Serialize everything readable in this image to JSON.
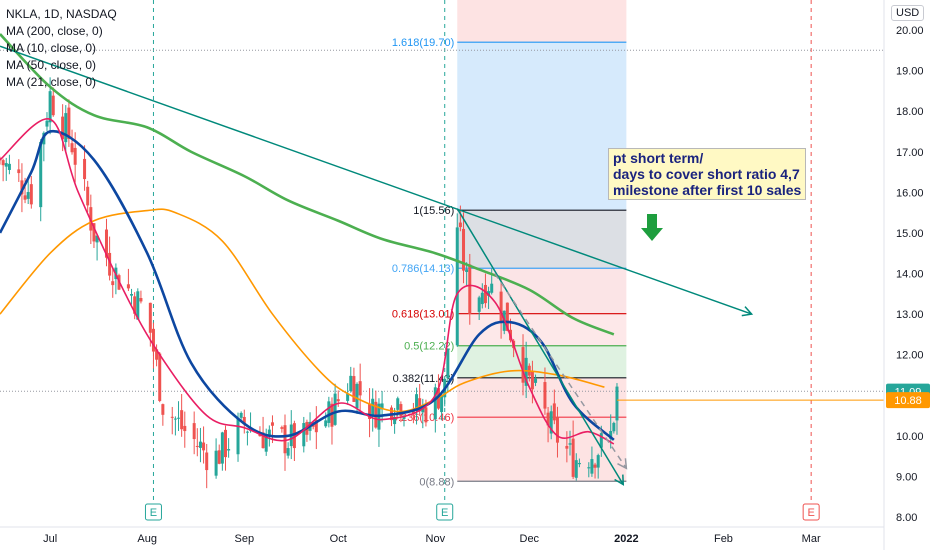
{
  "legend": {
    "title": "NKLA, 1D, NASDAQ",
    "ma200": "MA (200, close, 0)",
    "ma10": "MA (10, close, 0)",
    "ma50": "MA (50, close, 0)",
    "ma21": "MA (21, close, 0)"
  },
  "currency_badge": "USD",
  "annotation": {
    "line1": "pt short term/",
    "line2": "days to cover short ratio 4,7",
    "line3": "milestone after first 10 sales"
  },
  "event_marker": "E",
  "colors": {
    "up": "#26a69a",
    "down": "#ef5350",
    "ma200": "#4caf50",
    "ma10": "#e91e63",
    "ma50": "#ff9800",
    "ma21": "#0d47a1",
    "trend": "#00897b",
    "arrow": "#1e9e3e",
    "annotation_text": "#1a237e"
  },
  "chart_data": {
    "type": "candlestick",
    "title": "NKLA, 1D, NASDAQ",
    "x_axis": {
      "tick_labels": [
        "Jul",
        "Aug",
        "Sep",
        "Oct",
        "Nov",
        "Dec",
        "2022",
        "Feb",
        "Mar"
      ],
      "range": [
        "2021-06-15",
        "2022-03-15"
      ]
    },
    "y_axis": {
      "tick_labels": [
        "8.00",
        "9.00",
        "10.00",
        "11.00",
        "12.00",
        "13.00",
        "14.00",
        "15.00",
        "16.00",
        "17.00",
        "18.00",
        "19.00",
        "20.00"
      ],
      "range": [
        7.7,
        20.4
      ],
      "currency": "USD"
    },
    "price_labels": [
      {
        "value": 11.09,
        "label": "11.09",
        "color": "#26a69a"
      },
      {
        "value": 10.88,
        "label": "10.88",
        "color": "#ff9800"
      }
    ],
    "series": [
      {
        "name": "MA (200, close, 0)",
        "type": "ma",
        "points": [
          [
            "2021-06-15",
            19.9
          ],
          [
            "2021-07-01",
            18.6
          ],
          [
            "2021-07-15",
            17.9
          ],
          [
            "2021-08-01",
            17.6
          ],
          [
            "2021-08-15",
            17.0
          ],
          [
            "2021-09-01",
            16.4
          ],
          [
            "2021-09-15",
            15.8
          ],
          [
            "2021-10-01",
            15.3
          ],
          [
            "2021-10-15",
            14.85
          ],
          [
            "2021-11-01",
            14.5
          ],
          [
            "2021-11-15",
            14.1
          ],
          [
            "2021-12-01",
            13.6
          ],
          [
            "2021-12-15",
            12.9
          ],
          [
            "2021-12-28",
            12.5
          ]
        ]
      },
      {
        "name": "MA (50, close, 0)",
        "type": "ma",
        "points": [
          [
            "2021-06-15",
            13.0
          ],
          [
            "2021-07-01",
            14.5
          ],
          [
            "2021-07-15",
            15.3
          ],
          [
            "2021-08-01",
            15.55
          ],
          [
            "2021-08-10",
            15.5
          ],
          [
            "2021-08-25",
            14.8
          ],
          [
            "2021-09-10",
            13.0
          ],
          [
            "2021-09-25",
            11.6
          ],
          [
            "2021-10-05",
            11.0
          ],
          [
            "2021-10-20",
            10.6
          ],
          [
            "2021-11-01",
            10.9
          ],
          [
            "2021-11-10",
            11.3
          ],
          [
            "2021-11-25",
            11.6
          ],
          [
            "2021-12-10",
            11.5
          ],
          [
            "2021-12-25",
            11.2
          ]
        ]
      },
      {
        "name": "MA (21, close, 0)",
        "type": "ma",
        "points": [
          [
            "2021-06-15",
            15.0
          ],
          [
            "2021-06-25",
            16.5
          ],
          [
            "2021-07-01",
            17.5
          ],
          [
            "2021-07-15",
            16.8
          ],
          [
            "2021-08-01",
            14.5
          ],
          [
            "2021-08-15",
            11.8
          ],
          [
            "2021-09-01",
            10.3
          ],
          [
            "2021-09-15",
            10.0
          ],
          [
            "2021-10-01",
            10.6
          ],
          [
            "2021-10-15",
            10.5
          ],
          [
            "2021-11-01",
            10.9
          ],
          [
            "2021-11-15",
            12.5
          ],
          [
            "2021-11-25",
            12.8
          ],
          [
            "2021-12-05",
            12.3
          ],
          [
            "2021-12-15",
            10.8
          ],
          [
            "2021-12-28",
            9.9
          ]
        ]
      },
      {
        "name": "MA (10, close, 0)",
        "type": "ma",
        "points": [
          [
            "2021-06-15",
            16.8
          ],
          [
            "2021-07-01",
            17.8
          ],
          [
            "2021-07-10",
            16.0
          ],
          [
            "2021-07-25",
            13.5
          ],
          [
            "2021-08-05",
            12.0
          ],
          [
            "2021-08-20",
            10.5
          ],
          [
            "2021-09-01",
            10.2
          ],
          [
            "2021-09-15",
            9.9
          ],
          [
            "2021-10-01",
            10.8
          ],
          [
            "2021-10-15",
            10.4
          ],
          [
            "2021-11-01",
            11.0
          ],
          [
            "2021-11-08",
            13.5
          ],
          [
            "2021-11-20",
            13.3
          ],
          [
            "2021-12-01",
            11.2
          ],
          [
            "2021-12-10",
            10.0
          ],
          [
            "2021-12-20",
            10.1
          ],
          [
            "2021-12-28",
            9.8
          ]
        ]
      }
    ],
    "candles_sample": [
      {
        "date": "2021-06-20",
        "open": 17.2,
        "close": 16.5,
        "high": 17.6,
        "low": 16.0
      },
      {
        "date": "2021-07-01",
        "open": 17.5,
        "close": 18.6,
        "high": 18.9,
        "low": 17.2
      },
      {
        "date": "2021-08-10",
        "open": 11.5,
        "close": 10.5,
        "high": 11.8,
        "low": 10.2
      },
      {
        "date": "2021-09-15",
        "open": 10.0,
        "close": 10.3,
        "high": 10.6,
        "low": 9.7
      },
      {
        "date": "2021-11-08",
        "open": 12.4,
        "close": 15.4,
        "high": 15.6,
        "low": 12.2
      },
      {
        "date": "2021-12-28",
        "open": 10.1,
        "close": 11.09,
        "high": 11.3,
        "low": 9.9
      }
    ],
    "fibonacci": {
      "start": "2021-11-08",
      "end": "2022-01-01",
      "levels": [
        {
          "ratio": 0,
          "value": 8.88,
          "label": "0(8.88)",
          "color": "#787b86"
        },
        {
          "ratio": 0.236,
          "value": 10.46,
          "label": "0.236(10.46)",
          "color": "#f23645"
        },
        {
          "ratio": 0.382,
          "value": 11.43,
          "label": "0.382(11.43)",
          "color": "#131722"
        },
        {
          "ratio": 0.5,
          "value": 12.22,
          "label": "0.5(12.22)",
          "color": "#4caf50"
        },
        {
          "ratio": 0.618,
          "value": 13.01,
          "label": "0.618(13.01)",
          "color": "#d50000"
        },
        {
          "ratio": 0.786,
          "value": 14.13,
          "label": "0.786(14.13)",
          "color": "#42a5f5"
        },
        {
          "ratio": 1,
          "value": 15.56,
          "label": "1(15.56)",
          "color": "#131722"
        },
        {
          "ratio": 1.618,
          "value": 19.7,
          "label": "1.618(19.70)",
          "color": "#2196f3"
        }
      ]
    },
    "trendlines": [
      {
        "from": [
          "2021-06-15",
          19.6
        ],
        "to": [
          "2022-02-10",
          13.0
        ],
        "arrow": true
      },
      {
        "from": [
          "2021-11-08",
          15.6
        ],
        "to": [
          "2021-12-31",
          8.8
        ],
        "arrow": true
      },
      {
        "from": [
          "2021-11-20",
          14.0
        ],
        "to": [
          "2022-01-01",
          9.2
        ],
        "arrow": true,
        "dashed": true
      }
    ],
    "events": [
      "2021-08-03",
      "2021-11-04",
      "2022-03-01"
    ],
    "horizontal_lines": [
      {
        "value": 19.5,
        "style": "dotted"
      },
      {
        "value": 11.1,
        "style": "dotted"
      }
    ]
  }
}
